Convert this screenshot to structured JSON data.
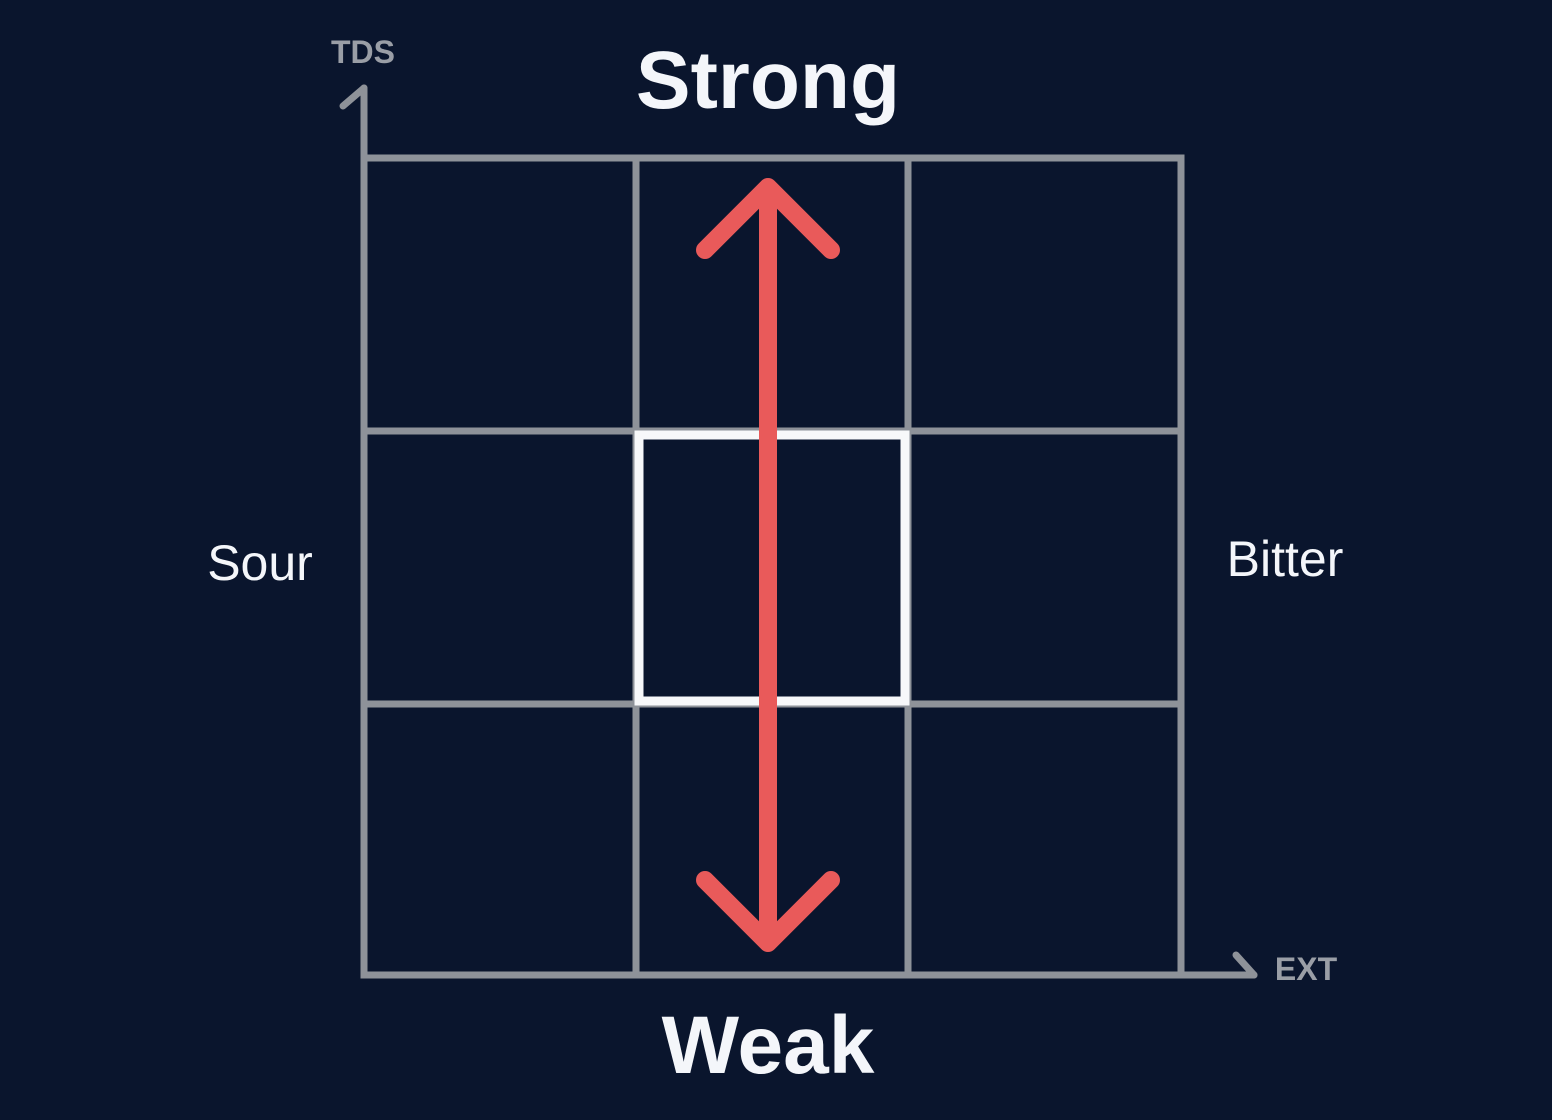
{
  "labels": {
    "top": "Strong",
    "bottom": "Weak",
    "left": "Sour",
    "right": "Bitter"
  },
  "axes": {
    "y": "TDS",
    "x": "EXT"
  },
  "grid": {
    "rows": 3,
    "cols": 3,
    "highlighted_cell": {
      "row": 2,
      "col": 2
    }
  },
  "arrow": {
    "direction": "vertical-double",
    "column": 2
  },
  "colors": {
    "background": "#0a152d",
    "grid": "#8e9299",
    "highlight": "#f7f8fa",
    "arrow": "#e95a5a",
    "text": "#f4f6fa",
    "axis_text": "#9a9ea6"
  }
}
